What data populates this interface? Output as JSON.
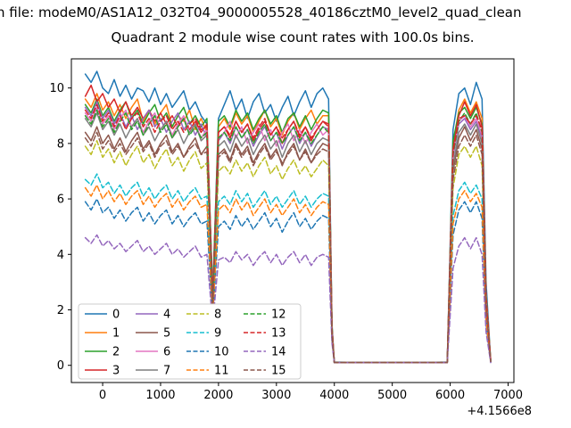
{
  "figure": {
    "title_line1": "n file: modeM0/AS1A12_032T04_9000005528_40186cztM0_level2_quad_clean",
    "title_line2": "Quadrant 2 module wise count rates with 100.0s bins."
  },
  "chart_data": {
    "type": "line",
    "title": "Quadrant 2 module wise count rates with 100.0s bins.",
    "xlabel": "",
    "ylabel": "",
    "x_offset_label": "+4.1566e8",
    "xlim": [
      -540,
      7100
    ],
    "ylim": [
      -0.62,
      11.05
    ],
    "xticks": [
      0,
      1000,
      2000,
      3000,
      4000,
      5000,
      6000,
      7000
    ],
    "yticks": [
      0,
      2,
      4,
      6,
      8,
      10
    ],
    "grid": false,
    "legend": {
      "position": "lower left",
      "columns": 4
    },
    "x": [
      -300,
      -200,
      -100,
      0,
      100,
      200,
      300,
      400,
      500,
      600,
      700,
      800,
      900,
      1000,
      1100,
      1200,
      1300,
      1400,
      1500,
      1600,
      1700,
      1800,
      1900,
      2000,
      2100,
      2200,
      2300,
      2400,
      2500,
      2600,
      2700,
      2800,
      2900,
      3000,
      3100,
      3200,
      3300,
      3400,
      3500,
      3600,
      3700,
      3800,
      3900,
      3960,
      4000,
      4500,
      5000,
      5500,
      5950,
      6050,
      6150,
      6250,
      6350,
      6450,
      6550,
      6620,
      6700
    ],
    "series": [
      {
        "name": "0",
        "color": "#1f77b4",
        "dash": "solid",
        "values": [
          10.5,
          10.2,
          10.6,
          10.0,
          9.8,
          10.3,
          9.7,
          10.1,
          9.6,
          10.0,
          9.9,
          9.5,
          10.0,
          9.4,
          9.8,
          9.3,
          9.6,
          9.9,
          9.2,
          9.5,
          9.0,
          8.7,
          2.6,
          8.9,
          9.4,
          9.9,
          9.2,
          9.6,
          8.9,
          9.5,
          9.8,
          9.1,
          9.4,
          8.8,
          9.3,
          9.7,
          9.0,
          9.5,
          9.9,
          9.3,
          9.8,
          10.0,
          9.6,
          1.5,
          0.12,
          0.1,
          0.1,
          0.1,
          0.12,
          8.5,
          9.8,
          10.0,
          9.4,
          10.2,
          9.6,
          3.0,
          0.15
        ]
      },
      {
        "name": "1",
        "color": "#ff7f0e",
        "dash": "solid",
        "values": [
          9.6,
          9.3,
          9.8,
          9.2,
          9.5,
          9.0,
          9.4,
          8.9,
          9.3,
          9.6,
          8.8,
          9.2,
          8.7,
          9.1,
          9.4,
          8.6,
          9.0,
          8.8,
          9.2,
          8.5,
          8.9,
          8.4,
          2.4,
          8.6,
          8.9,
          8.5,
          9.1,
          8.7,
          9.0,
          8.4,
          8.8,
          9.2,
          8.6,
          8.9,
          8.3,
          8.8,
          9.1,
          8.5,
          8.9,
          9.2,
          8.7,
          9.0,
          9.0,
          1.4,
          0.11,
          0.1,
          0.1,
          0.1,
          0.11,
          8.0,
          9.2,
          9.6,
          9.1,
          9.5,
          8.9,
          2.6,
          0.18
        ]
      },
      {
        "name": "2",
        "color": "#2ca02c",
        "dash": "solid",
        "values": [
          9.4,
          9.1,
          9.6,
          9.0,
          9.3,
          8.8,
          9.2,
          9.5,
          8.9,
          9.2,
          8.7,
          9.1,
          9.4,
          8.8,
          9.1,
          8.6,
          9.0,
          9.3,
          8.7,
          9.0,
          8.6,
          8.9,
          2.5,
          8.8,
          9.0,
          8.6,
          9.2,
          8.8,
          9.1,
          8.5,
          8.9,
          9.2,
          8.7,
          9.0,
          8.4,
          8.9,
          9.1,
          8.6,
          9.0,
          8.5,
          8.9,
          9.2,
          9.1,
          1.4,
          0.1,
          0.1,
          0.1,
          0.1,
          0.1,
          8.1,
          9.1,
          9.3,
          8.9,
          9.3,
          8.7,
          2.5,
          0.17
        ]
      },
      {
        "name": "3",
        "color": "#d62728",
        "dash": "solid",
        "values": [
          9.7,
          10.1,
          9.5,
          9.8,
          9.3,
          9.6,
          9.1,
          9.5,
          9.0,
          9.3,
          8.9,
          9.2,
          8.8,
          9.1,
          8.7,
          9.0,
          8.6,
          8.9,
          8.5,
          8.8,
          8.4,
          8.7,
          2.3,
          8.4,
          8.6,
          8.2,
          8.8,
          8.4,
          8.7,
          8.1,
          8.5,
          8.8,
          8.3,
          8.6,
          8.0,
          8.5,
          8.8,
          8.2,
          8.6,
          8.1,
          8.5,
          8.8,
          8.7,
          1.3,
          0.1,
          0.1,
          0.1,
          0.1,
          0.1,
          7.8,
          9.0,
          9.5,
          9.0,
          9.4,
          8.6,
          2.4,
          0.16
        ]
      },
      {
        "name": "4",
        "color": "#9467bd",
        "dash": "solid",
        "values": [
          9.3,
          9.0,
          9.5,
          8.9,
          9.2,
          8.7,
          9.1,
          8.6,
          9.0,
          8.5,
          8.9,
          9.2,
          8.6,
          8.9,
          8.4,
          8.8,
          9.1,
          8.5,
          8.8,
          8.3,
          8.7,
          8.2,
          2.3,
          8.1,
          8.4,
          8.0,
          8.6,
          8.2,
          8.5,
          7.9,
          8.3,
          8.6,
          8.1,
          8.4,
          7.8,
          8.3,
          8.6,
          8.0,
          8.4,
          7.9,
          8.3,
          8.6,
          8.5,
          1.3,
          0.1,
          0.1,
          0.1,
          0.1,
          0.1,
          7.5,
          8.7,
          8.9,
          8.5,
          8.8,
          8.2,
          2.3,
          0.15
        ]
      },
      {
        "name": "5",
        "color": "#8c564b",
        "dash": "solid",
        "values": [
          8.4,
          8.1,
          8.6,
          8.0,
          8.3,
          7.8,
          8.2,
          7.7,
          8.1,
          8.4,
          7.8,
          8.1,
          7.6,
          8.0,
          8.3,
          7.7,
          8.0,
          7.5,
          7.9,
          8.2,
          7.6,
          7.9,
          2.2,
          7.6,
          7.8,
          7.4,
          8.0,
          7.6,
          7.9,
          7.3,
          7.7,
          8.0,
          7.5,
          7.8,
          7.2,
          7.7,
          8.0,
          7.4,
          7.8,
          7.3,
          7.7,
          8.0,
          7.9,
          1.2,
          0.1,
          0.1,
          0.1,
          0.1,
          0.1,
          7.0,
          8.2,
          8.6,
          8.1,
          8.5,
          7.8,
          2.2,
          0.15
        ]
      },
      {
        "name": "6",
        "color": "#e377c2",
        "dash": "solid",
        "values": [
          9.1,
          8.8,
          9.3,
          8.7,
          9.0,
          8.5,
          8.9,
          9.2,
          8.6,
          8.9,
          8.4,
          8.8,
          9.1,
          8.5,
          8.8,
          8.3,
          8.7,
          9.0,
          8.4,
          8.7,
          8.2,
          8.5,
          2.4,
          8.2,
          8.4,
          8.8,
          8.2,
          8.6,
          8.0,
          8.4,
          8.7,
          8.1,
          8.5,
          7.9,
          8.4,
          8.7,
          8.1,
          8.5,
          8.0,
          8.4,
          8.7,
          8.3,
          8.5,
          1.3,
          0.1,
          0.1,
          0.1,
          0.1,
          0.1,
          7.6,
          8.8,
          9.0,
          8.6,
          8.9,
          8.3,
          2.3,
          0.16
        ]
      },
      {
        "name": "7",
        "color": "#7f7f7f",
        "dash": "solid",
        "values": [
          8.9,
          8.6,
          9.1,
          8.5,
          8.8,
          8.3,
          8.7,
          8.2,
          8.6,
          8.9,
          8.3,
          8.6,
          8.1,
          8.5,
          8.8,
          8.2,
          8.5,
          8.0,
          8.4,
          8.7,
          8.1,
          8.3,
          2.2,
          7.9,
          8.1,
          7.7,
          8.3,
          7.9,
          8.2,
          7.6,
          8.0,
          8.3,
          7.8,
          8.1,
          7.5,
          8.0,
          8.3,
          7.7,
          8.1,
          7.6,
          8.0,
          8.2,
          8.1,
          1.2,
          0.1,
          0.1,
          0.1,
          0.1,
          0.1,
          7.2,
          8.4,
          8.7,
          8.3,
          8.7,
          8.0,
          2.2,
          0.15
        ]
      },
      {
        "name": "8",
        "color": "#bcbd22",
        "dash": "dashed",
        "values": [
          7.9,
          7.6,
          8.1,
          7.5,
          7.8,
          7.3,
          7.7,
          7.2,
          7.6,
          7.9,
          7.3,
          7.6,
          7.1,
          7.5,
          7.8,
          7.2,
          7.5,
          7.0,
          7.4,
          7.7,
          7.1,
          7.3,
          2.0,
          7.0,
          7.2,
          6.9,
          7.4,
          7.0,
          7.3,
          6.8,
          7.2,
          7.5,
          6.9,
          7.2,
          6.7,
          7.1,
          7.4,
          6.9,
          7.2,
          6.8,
          7.1,
          7.4,
          7.2,
          1.1,
          0.1,
          0.1,
          0.1,
          0.1,
          0.1,
          6.4,
          7.6,
          7.9,
          7.5,
          7.9,
          7.2,
          2.0,
          0.14
        ]
      },
      {
        "name": "9",
        "color": "#17becf",
        "dash": "dashed",
        "values": [
          6.7,
          6.5,
          6.9,
          6.4,
          6.6,
          6.2,
          6.5,
          6.1,
          6.4,
          6.6,
          6.1,
          6.4,
          6.0,
          6.3,
          6.5,
          6.0,
          6.3,
          5.9,
          6.2,
          6.4,
          6.0,
          6.1,
          1.8,
          5.9,
          6.1,
          5.8,
          6.3,
          5.9,
          6.2,
          5.7,
          6.0,
          6.3,
          5.8,
          6.1,
          5.7,
          6.0,
          6.3,
          5.8,
          6.1,
          5.7,
          6.0,
          6.2,
          6.1,
          1.0,
          0.1,
          0.1,
          0.1,
          0.1,
          0.1,
          5.4,
          6.3,
          6.6,
          6.2,
          6.5,
          6.0,
          1.7,
          0.13
        ]
      },
      {
        "name": "10",
        "color": "#1f77b4",
        "dash": "dashed",
        "values": [
          5.9,
          5.6,
          6.0,
          5.5,
          5.7,
          5.3,
          5.6,
          5.2,
          5.5,
          5.7,
          5.2,
          5.5,
          5.1,
          5.4,
          5.6,
          5.1,
          5.4,
          5.0,
          5.3,
          5.5,
          5.1,
          5.2,
          1.7,
          5.0,
          5.2,
          4.9,
          5.4,
          5.0,
          5.3,
          4.9,
          5.2,
          5.5,
          5.0,
          5.3,
          4.8,
          5.2,
          5.5,
          5.0,
          5.3,
          4.9,
          5.2,
          5.4,
          5.3,
          0.9,
          0.1,
          0.1,
          0.1,
          0.1,
          0.1,
          4.7,
          5.6,
          5.9,
          5.5,
          5.9,
          5.3,
          1.5,
          0.12
        ]
      },
      {
        "name": "11",
        "color": "#ff7f0e",
        "dash": "dashed",
        "values": [
          6.4,
          6.1,
          6.5,
          6.0,
          6.3,
          5.9,
          6.2,
          5.8,
          6.1,
          6.3,
          5.8,
          6.1,
          5.7,
          6.0,
          6.2,
          5.7,
          6.0,
          5.6,
          5.9,
          6.1,
          5.7,
          5.8,
          1.8,
          5.6,
          5.8,
          5.5,
          6.0,
          5.6,
          5.9,
          5.4,
          5.7,
          6.0,
          5.5,
          5.8,
          5.4,
          5.7,
          6.0,
          5.5,
          5.8,
          5.4,
          5.7,
          5.9,
          5.8,
          1.0,
          0.1,
          0.1,
          0.1,
          0.1,
          0.1,
          5.1,
          6.0,
          6.3,
          5.9,
          6.2,
          5.7,
          1.6,
          0.13
        ]
      },
      {
        "name": "12",
        "color": "#2ca02c",
        "dash": "dashed",
        "values": [
          9.0,
          8.7,
          9.2,
          8.6,
          8.9,
          8.4,
          8.8,
          9.1,
          8.5,
          8.8,
          8.3,
          8.7,
          9.0,
          8.4,
          8.7,
          8.2,
          8.6,
          8.9,
          8.3,
          8.6,
          8.2,
          8.4,
          2.3,
          8.2,
          8.4,
          8.1,
          8.6,
          8.2,
          8.5,
          8.0,
          8.4,
          8.7,
          8.1,
          8.4,
          8.0,
          8.3,
          8.6,
          8.1,
          8.4,
          8.0,
          8.3,
          8.6,
          8.4,
          1.3,
          0.1,
          0.1,
          0.1,
          0.1,
          0.1,
          7.6,
          8.8,
          9.1,
          8.7,
          9.1,
          8.4,
          2.3,
          0.15
        ]
      },
      {
        "name": "13",
        "color": "#d62728",
        "dash": "dashed",
        "values": [
          9.2,
          8.9,
          9.4,
          8.8,
          9.1,
          8.6,
          9.0,
          8.5,
          8.9,
          9.1,
          8.6,
          8.9,
          8.4,
          8.8,
          9.0,
          8.5,
          8.8,
          8.4,
          8.7,
          8.9,
          8.5,
          8.6,
          2.4,
          8.4,
          8.6,
          8.3,
          8.8,
          8.4,
          8.7,
          8.2,
          8.6,
          8.9,
          8.3,
          8.6,
          8.2,
          8.5,
          8.8,
          8.3,
          8.6,
          8.2,
          8.5,
          8.8,
          8.6,
          1.3,
          0.1,
          0.1,
          0.1,
          0.1,
          0.1,
          7.7,
          8.9,
          9.0,
          8.7,
          9.0,
          8.5,
          2.4,
          0.15
        ]
      },
      {
        "name": "14",
        "color": "#9467bd",
        "dash": "dashed",
        "values": [
          4.6,
          4.4,
          4.7,
          4.3,
          4.5,
          4.2,
          4.4,
          4.1,
          4.3,
          4.5,
          4.1,
          4.3,
          4.0,
          4.2,
          4.4,
          4.0,
          4.2,
          3.9,
          4.1,
          4.3,
          3.9,
          4.0,
          1.5,
          3.8,
          3.9,
          3.7,
          4.1,
          3.8,
          4.0,
          3.6,
          3.9,
          4.1,
          3.7,
          4.0,
          3.6,
          3.9,
          4.1,
          3.7,
          4.0,
          3.6,
          3.9,
          4.0,
          3.9,
          0.8,
          0.1,
          0.1,
          0.1,
          0.1,
          0.1,
          3.5,
          4.3,
          4.6,
          4.2,
          4.6,
          4.0,
          1.2,
          0.1
        ]
      },
      {
        "name": "15",
        "color": "#8c564b",
        "dash": "dashed",
        "values": [
          8.2,
          7.9,
          8.4,
          7.8,
          8.1,
          7.7,
          8.0,
          7.6,
          7.9,
          8.2,
          7.7,
          8.0,
          7.5,
          7.9,
          8.1,
          7.6,
          7.9,
          7.5,
          7.8,
          8.0,
          7.6,
          7.7,
          2.1,
          7.5,
          7.7,
          7.3,
          7.9,
          7.5,
          7.8,
          7.2,
          7.6,
          7.9,
          7.4,
          7.7,
          7.3,
          7.6,
          7.9,
          7.4,
          7.7,
          7.3,
          7.6,
          7.8,
          7.7,
          1.1,
          0.1,
          0.1,
          0.1,
          0.1,
          0.1,
          6.7,
          7.9,
          8.3,
          7.9,
          8.3,
          7.6,
          2.1,
          0.14
        ]
      }
    ]
  }
}
